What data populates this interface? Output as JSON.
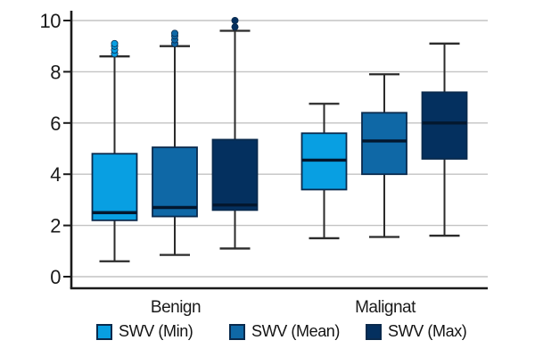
{
  "chart_data": {
    "type": "boxplot",
    "title": "",
    "xlabel": "",
    "ylabel": "",
    "categories": [
      "Benign",
      "Malignat"
    ],
    "yticks": [
      0,
      2,
      4,
      6,
      8,
      10
    ],
    "ylim": [
      -0.45,
      10.4
    ],
    "grid": true,
    "legend_position": "bottom",
    "colors": {
      "grid": "#c3c3c3",
      "axis": "#1a1a1a",
      "whisker": "#2b2b2b",
      "box_border": "#0a2a4d",
      "median": "#03172e",
      "background": "#ffffff"
    },
    "series": [
      {
        "name": "SWV (Min)",
        "color": "#089fe2",
        "boxes": [
          {
            "category": "Benign",
            "low": 0.6,
            "q1": 2.2,
            "median": 2.5,
            "q3": 4.8,
            "high": 8.6,
            "outliers": [
              8.7,
              8.85,
              9.0,
              9.1
            ]
          },
          {
            "category": "Malignat",
            "low": 1.5,
            "q1": 3.4,
            "median": 4.55,
            "q3": 5.6,
            "high": 6.75,
            "outliers": []
          }
        ]
      },
      {
        "name": "SWV (Mean)",
        "color": "#0f68a6",
        "boxes": [
          {
            "category": "Benign",
            "low": 0.85,
            "q1": 2.35,
            "median": 2.7,
            "q3": 5.05,
            "high": 9.0,
            "outliers": [
              9.1,
              9.25,
              9.4,
              9.5
            ]
          },
          {
            "category": "Malignat",
            "low": 1.55,
            "q1": 4.0,
            "median": 5.3,
            "q3": 6.4,
            "high": 7.9,
            "outliers": []
          }
        ]
      },
      {
        "name": "SWV (Max)",
        "color": "#04305f",
        "boxes": [
          {
            "category": "Benign",
            "low": 1.1,
            "q1": 2.6,
            "median": 2.8,
            "q3": 5.35,
            "high": 9.6,
            "outliers": [
              9.75,
              10.0
            ]
          },
          {
            "category": "Malignat",
            "low": 1.6,
            "q1": 4.6,
            "median": 6.0,
            "q3": 7.2,
            "high": 9.1,
            "outliers": []
          }
        ]
      }
    ]
  }
}
